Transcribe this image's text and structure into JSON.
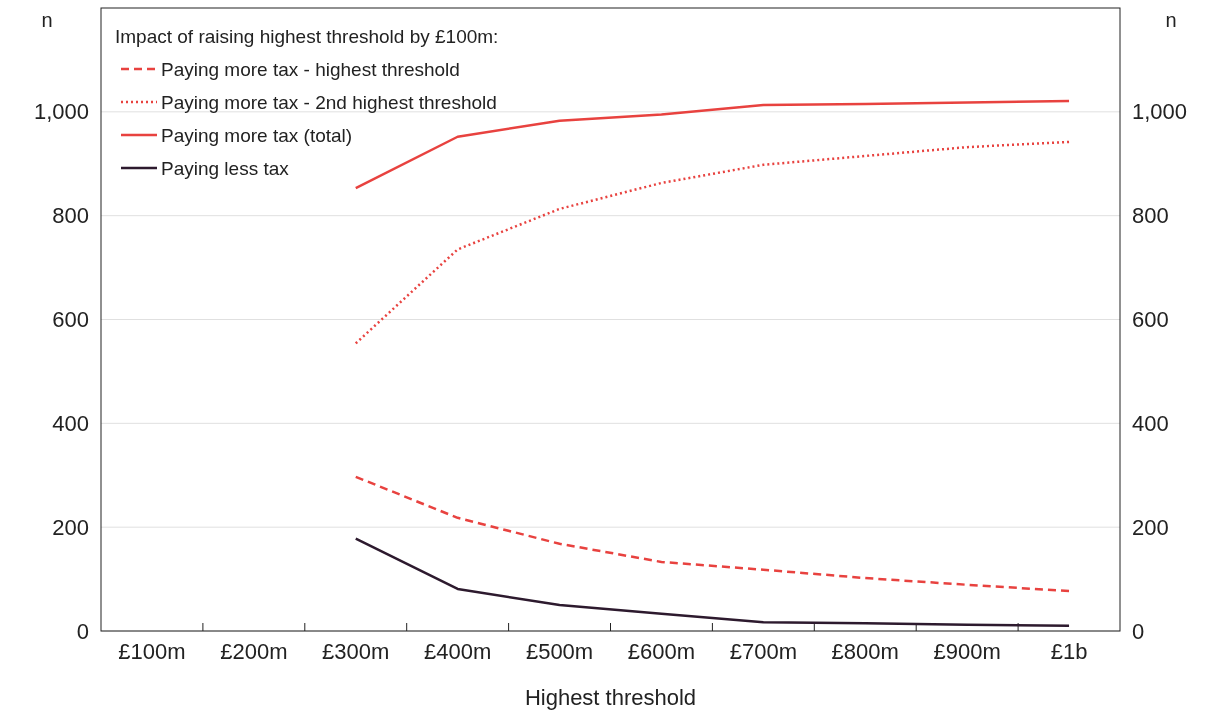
{
  "chart_data": {
    "type": "line",
    "xlabel": "Highest threshold",
    "ylabel": "n",
    "y2label": "n",
    "legend_title": "Impact of raising highest threshold by £100m:",
    "categories": [
      "£100m",
      "£200m",
      "£300m",
      "£400m",
      "£500m",
      "£600m",
      "£700m",
      "£800m",
      "£900m",
      "£1b"
    ],
    "series": [
      {
        "name": "Paying more tax - highest threshold",
        "color": "#e8423f",
        "line_style": "dashed",
        "values": [
          null,
          null,
          297,
          218,
          168,
          133,
          118,
          102,
          89,
          77
        ]
      },
      {
        "name": "Paying more tax - 2nd highest threshold",
        "color": "#e8423f",
        "line_style": "dotted",
        "values": [
          null,
          null,
          554,
          735,
          813,
          863,
          898,
          915,
          932,
          942
        ]
      },
      {
        "name": "Paying more tax (total)",
        "color": "#e8423f",
        "line_style": "solid",
        "values": [
          null,
          null,
          853,
          952,
          983,
          995,
          1013,
          1015,
          1018,
          1021
        ]
      },
      {
        "name": "Paying less tax",
        "color": "#2d1a2e",
        "line_style": "solid",
        "values": [
          null,
          null,
          178,
          81,
          50,
          33,
          17,
          15,
          12,
          10
        ]
      }
    ],
    "ylim": [
      0,
      1200
    ],
    "yticks": [
      0,
      200,
      400,
      600,
      800,
      {
        "value": 1000,
        "label": "1,000"
      }
    ],
    "y2lim": [
      0,
      1200
    ],
    "y2ticks": [
      0,
      200,
      400,
      600,
      800,
      {
        "value": 1000,
        "label": "1,000"
      }
    ],
    "grid": "y",
    "legend": "top left",
    "marker": "none"
  }
}
